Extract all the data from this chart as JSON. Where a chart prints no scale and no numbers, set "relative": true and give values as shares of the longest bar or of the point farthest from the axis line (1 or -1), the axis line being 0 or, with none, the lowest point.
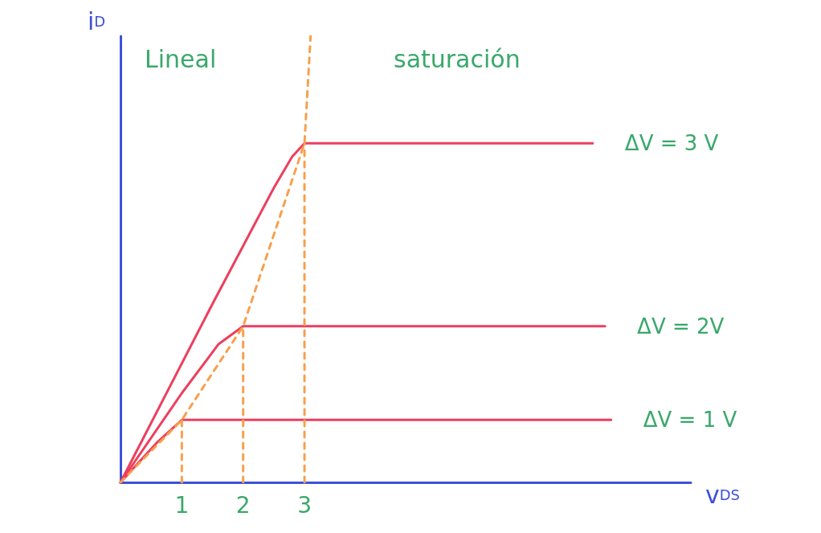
{
  "chart_data": {
    "type": "line",
    "relative": true,
    "xlabel": "v$_{DS}$",
    "ylabel": "i$_{D}$",
    "xlim": [
      0,
      9.3
    ],
    "xticks": [
      1,
      2,
      3
    ],
    "grid": false,
    "legend": false,
    "marker": "none",
    "line_style": "solid",
    "annotations": [
      "Lineal",
      "saturación"
    ],
    "series": [
      {
        "name": "ΔV = 3 V",
        "color": "#ec3f5e",
        "x": [
          0,
          1.5,
          2.5,
          2.8,
          3,
          7.7
        ],
        "values": [
          0,
          0.4,
          0.66,
          0.73,
          0.76,
          0.76
        ]
      },
      {
        "name": "ΔV = 2V",
        "color": "#ec3f5e",
        "x": [
          0,
          1,
          1.6,
          2,
          7.9
        ],
        "values": [
          0,
          0.2,
          0.31,
          0.35,
          0.35
        ]
      },
      {
        "name": "ΔV = 1 V",
        "color": "#ec3f5e",
        "x": [
          0,
          0.6,
          1,
          8
        ],
        "values": [
          0,
          0.09,
          0.14,
          0.14
        ]
      },
      {
        "color": "#f7a04c",
        "line_style": "dashed",
        "x": [
          0,
          1,
          2,
          3,
          3.1
        ],
        "values": [
          0,
          0.14,
          0.35,
          0.76,
          1
        ]
      },
      {
        "color": "#f7a04c",
        "line_style": "dashed",
        "x": [
          1,
          1
        ],
        "values": [
          0,
          0.14
        ]
      },
      {
        "color": "#f7a04c",
        "line_style": "dashed",
        "x": [
          2,
          2
        ],
        "values": [
          0,
          0.35
        ]
      },
      {
        "color": "#f7a04c",
        "line_style": "dashed",
        "x": [
          3,
          3
        ],
        "values": [
          0,
          0.76
        ]
      }
    ]
  }
}
